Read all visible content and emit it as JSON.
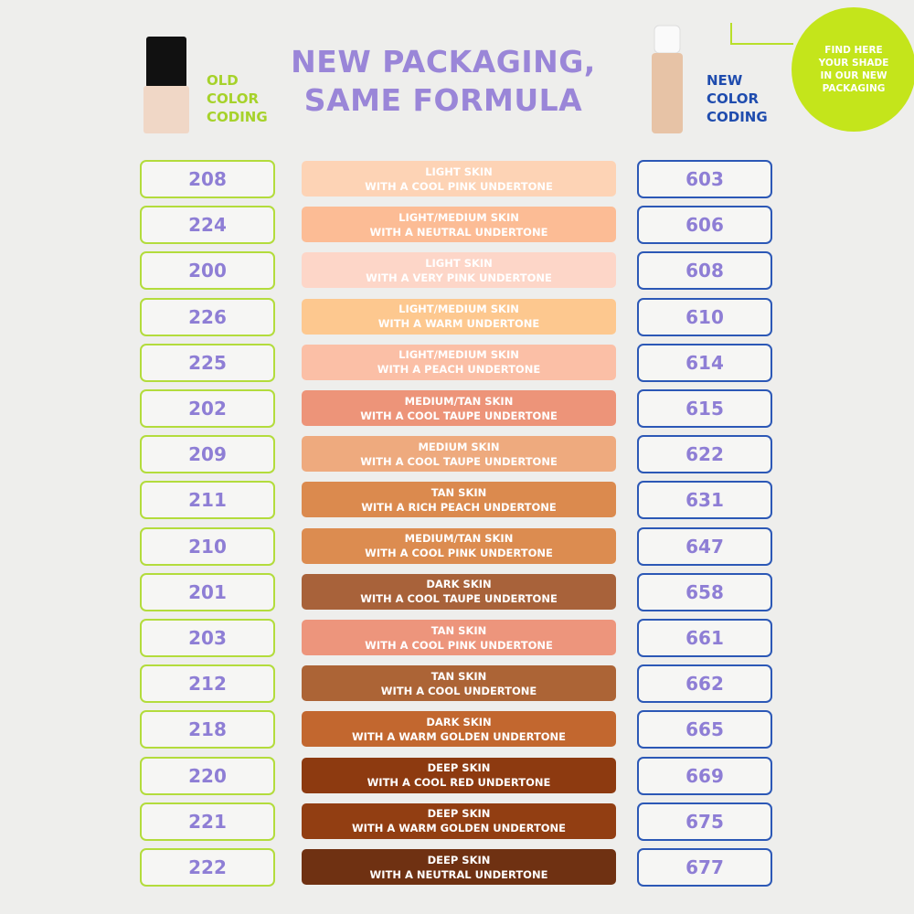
{
  "header": {
    "title": [
      "NEW PACKAGING,",
      "SAME FORMULA"
    ],
    "old_label": [
      "OLD",
      "COLOR",
      "CODING"
    ],
    "new_label": [
      "NEW",
      "COLOR",
      "CODING"
    ],
    "callout": [
      "FIND HERE",
      "YOUR SHADE",
      "IN OUR NEW",
      "PACKAGING"
    ]
  },
  "rows": [
    {
      "old": "208",
      "desc": [
        "LIGHT SKIN",
        "WITH A COOL PINK UNDERTONE"
      ],
      "new": "603",
      "color": "#fdd3b5"
    },
    {
      "old": "224",
      "desc": [
        "LIGHT/MEDIUM SKIN",
        "WITH A NEUTRAL UNDERTONE"
      ],
      "new": "606",
      "color": "#fcbc95"
    },
    {
      "old": "200",
      "desc": [
        "LIGHT SKIN",
        "WITH A VERY PINK UNDERTONE"
      ],
      "new": "608",
      "color": "#fdd6c8"
    },
    {
      "old": "226",
      "desc": [
        "LIGHT/MEDIUM SKIN",
        "WITH A WARM UNDERTONE"
      ],
      "new": "610",
      "color": "#fdc88f"
    },
    {
      "old": "225",
      "desc": [
        "LIGHT/MEDIUM SKIN",
        "WITH A PEACH UNDERTONE"
      ],
      "new": "614",
      "color": "#fbbfa6"
    },
    {
      "old": "202",
      "desc": [
        "MEDIUM/TAN SKIN",
        "WITH A COOL TAUPE UNDERTONE"
      ],
      "new": "615",
      "color": "#ed9479"
    },
    {
      "old": "209",
      "desc": [
        "MEDIUM SKIN",
        "WITH A COOL TAUPE UNDERTONE"
      ],
      "new": "622",
      "color": "#eeaa7e"
    },
    {
      "old": "211",
      "desc": [
        "TAN SKIN",
        "WITH A RICH PEACH UNDERTONE"
      ],
      "new": "631",
      "color": "#db8a4e"
    },
    {
      "old": "210",
      "desc": [
        "MEDIUM/TAN SKIN",
        "WITH A COOL PINK UNDERTONE"
      ],
      "new": "647",
      "color": "#dc8c50"
    },
    {
      "old": "201",
      "desc": [
        "DARK SKIN",
        "WITH A COOL TAUPE UNDERTONE"
      ],
      "new": "658",
      "color": "#a8623a"
    },
    {
      "old": "203",
      "desc": [
        "TAN SKIN",
        "WITH A COOL PINK UNDERTONE"
      ],
      "new": "661",
      "color": "#ed957c"
    },
    {
      "old": "212",
      "desc": [
        "TAN SKIN",
        "WITH A COOL UNDERTONE"
      ],
      "new": "662",
      "color": "#ac6436"
    },
    {
      "old": "218",
      "desc": [
        "DARK SKIN",
        "WITH A WARM GOLDEN UNDERTONE"
      ],
      "new": "665",
      "color": "#c2672f"
    },
    {
      "old": "220",
      "desc": [
        "DEEP SKIN",
        "WITH A COOL RED UNDERTONE"
      ],
      "new": "669",
      "color": "#8d3a10"
    },
    {
      "old": "221",
      "desc": [
        "DEEP SKIN",
        "WITH A WARM GOLDEN UNDERTONE"
      ],
      "new": "675",
      "color": "#923e12"
    },
    {
      "old": "222",
      "desc": [
        "DEEP SKIN",
        "WITH A NEUTRAL UNDERTONE"
      ],
      "new": "677",
      "color": "#6f3112"
    }
  ]
}
